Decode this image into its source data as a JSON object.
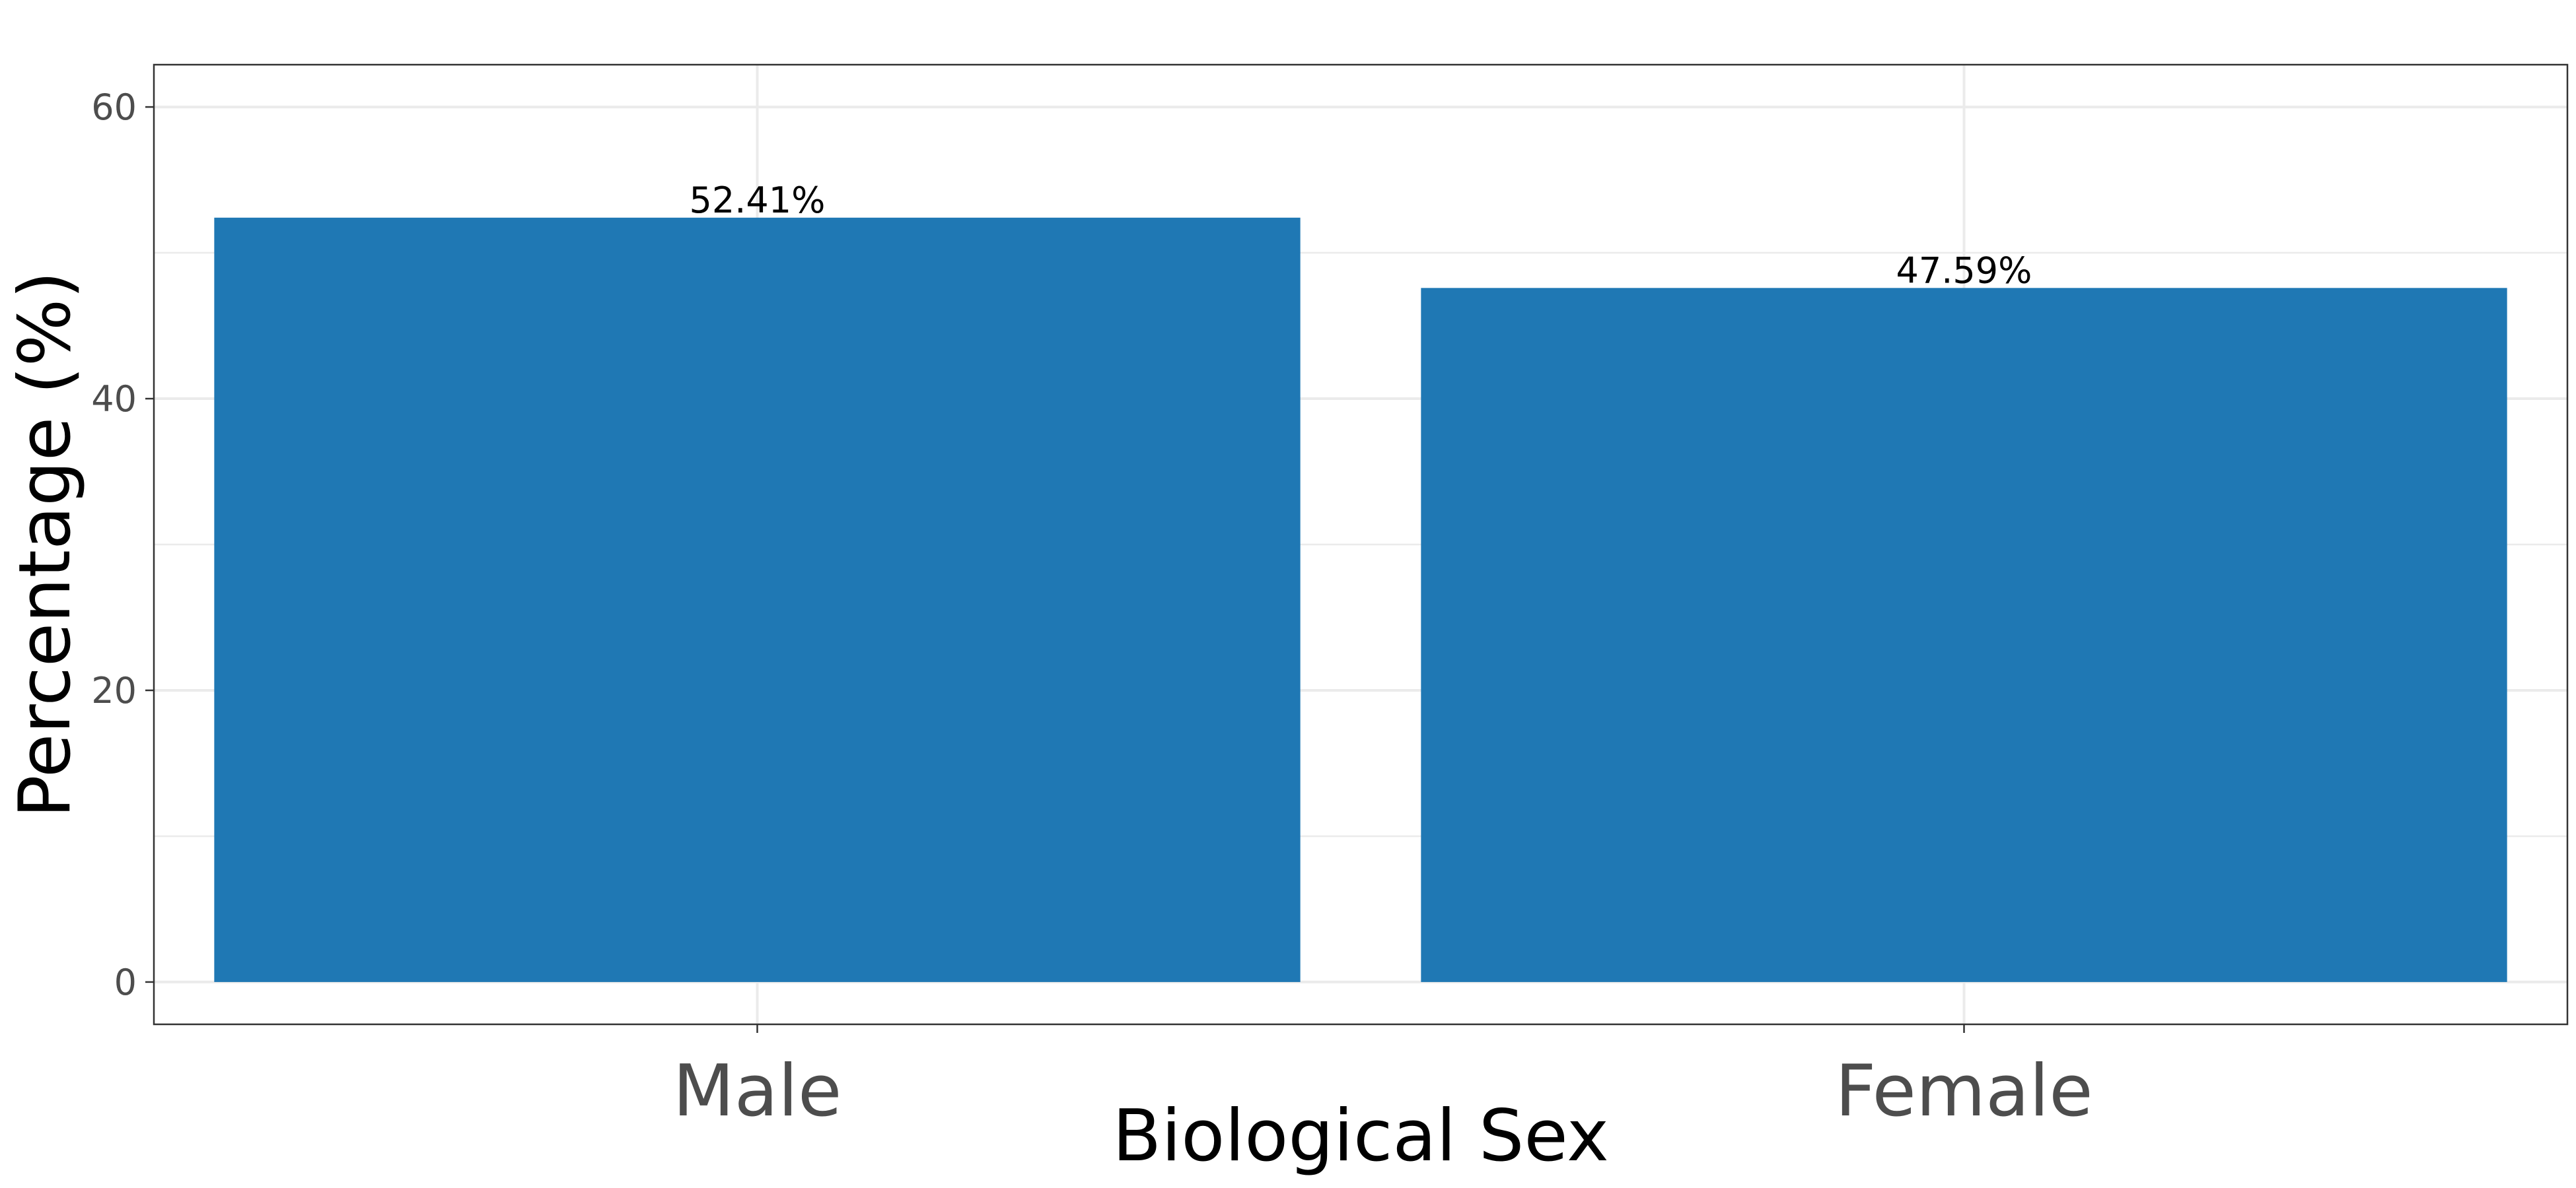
{
  "chart_data": {
    "type": "bar",
    "categories": [
      "Male",
      "Female"
    ],
    "values": [
      52.41,
      47.59
    ],
    "data_labels": [
      "52.41%",
      "47.59%"
    ],
    "xlabel": "Biological Sex",
    "ylabel": "Percentage (%)",
    "ylim": [
      -2.9,
      62.9
    ],
    "yticks": [
      0,
      20,
      40,
      60
    ],
    "grid": true,
    "legend": "none",
    "bar_color": "#1F78B4",
    "grid_color": "#EBEBEB",
    "panel_border_color": "#333333",
    "tick_text_color": "#4D4D4D"
  }
}
